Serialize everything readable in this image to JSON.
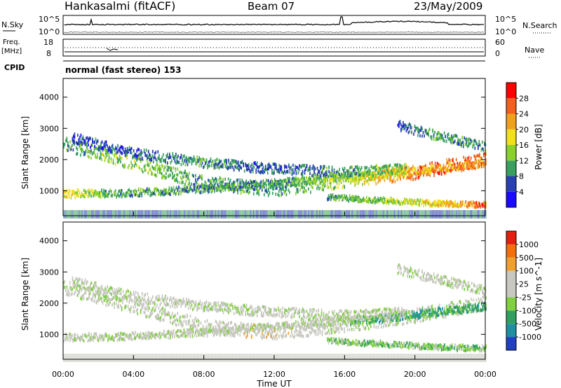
{
  "header": {
    "title": "Hankasalmi (fitACF)",
    "beam": "Beam 07",
    "date": "23/May/2009"
  },
  "strips": {
    "nsky_label": "N.Sky",
    "nsky_ticks": [
      "10^5",
      "10^0"
    ],
    "nsearch_label": "N.Search",
    "nsearch_ticks": [
      "10^5",
      "10^0"
    ],
    "freq_label": "Freq.",
    "freq_unit": "[MHz]",
    "freq_ticks": [
      "18",
      "8"
    ],
    "nave_label": "Nave",
    "nave_ticks": [
      "60",
      "0"
    ],
    "cpid_label": "CPID",
    "cpid_text": "normal (fast stereo) 153"
  },
  "chart_data": [
    {
      "type": "heatmap",
      "name": "power",
      "ylabel": "Slant Range [km]",
      "yticks": [
        1000,
        2000,
        3000,
        4000
      ],
      "ylim": [
        200,
        4600
      ],
      "xlim": [
        0,
        24
      ],
      "colorbar_label": "Power [dB]",
      "colorbar_ticks": [
        "4",
        "8",
        "12",
        "16",
        "20",
        "24",
        "28"
      ],
      "colors": [
        "#1a0aff",
        "#2a3fb0",
        "#3aa060",
        "#8ad030",
        "#f0e020",
        "#f0a020",
        "#f06020",
        "#ff0000"
      ],
      "bands": [
        {
          "t": [
            0,
            4,
            8,
            12,
            16,
            20,
            24
          ],
          "r": [
            2500,
            1900,
            1250,
            1050,
            1300,
            1600,
            2000
          ],
          "w": 220,
          "level": [
            2,
            3,
            2,
            2,
            3,
            6,
            6
          ]
        },
        {
          "t": [
            0,
            3,
            6,
            9,
            12,
            15,
            18,
            21,
            24
          ],
          "r": [
            900,
            920,
            1000,
            1100,
            1250,
            1400,
            1500,
            1700,
            1900
          ],
          "w": 120,
          "level": [
            4,
            2,
            2,
            2,
            2,
            3,
            4,
            5,
            5
          ]
        },
        {
          "t": [
            0.5,
            4,
            8,
            12,
            16,
            19.5
          ],
          "r": [
            2700,
            2200,
            1900,
            1700,
            1600,
            1700
          ],
          "w": 160,
          "level": [
            1,
            1,
            2,
            1,
            2,
            3
          ]
        },
        {
          "t": [
            19,
            21,
            24
          ],
          "r": [
            3100,
            2800,
            2400
          ],
          "w": 150,
          "level": [
            1,
            2,
            2
          ]
        },
        {
          "t": [
            15,
            18,
            21,
            24
          ],
          "r": [
            800,
            700,
            600,
            550
          ],
          "w": 90,
          "level": [
            2,
            3,
            4,
            6
          ]
        }
      ]
    },
    {
      "type": "heatmap",
      "name": "velocity",
      "ylabel": "Slant Range [km]",
      "yticks": [
        1000,
        2000,
        3000,
        4000
      ],
      "ylim": [
        200,
        4600
      ],
      "xlim": [
        0,
        24
      ],
      "xlabel": "Time UT",
      "xticks": [
        "00:00",
        "04:00",
        "08:00",
        "12:00",
        "16:00",
        "20:00",
        "00:00"
      ],
      "colorbar_label": "Velocity [m s^-1]",
      "colorbar_ticks": [
        "1000",
        "500",
        "100",
        "25",
        "-25",
        "-100",
        "-500",
        "-1000"
      ],
      "colors": [
        "#2040c0",
        "#2090a0",
        "#30a060",
        "#80d040",
        "#c8c8c0",
        "#c8c8c0",
        "#f0a030",
        "#f07010",
        "#e02010"
      ],
      "bands": [
        {
          "t": [
            0,
            4,
            8,
            12,
            16,
            20,
            24
          ],
          "r": [
            2500,
            1900,
            1250,
            1050,
            1300,
            1600,
            2000
          ],
          "w": 220,
          "level": [
            4,
            4,
            4,
            5,
            4,
            4,
            4
          ]
        },
        {
          "t": [
            0,
            3,
            6,
            9,
            12,
            15,
            18,
            21,
            24
          ],
          "r": [
            900,
            920,
            1000,
            1100,
            1250,
            1400,
            1500,
            1700,
            1900
          ],
          "w": 120,
          "level": [
            4,
            4,
            4,
            4,
            4,
            4,
            2,
            2,
            2
          ]
        },
        {
          "t": [
            0.5,
            4,
            8,
            12,
            16,
            19.5
          ],
          "r": [
            2700,
            2200,
            1900,
            1700,
            1600,
            1700
          ],
          "w": 160,
          "level": [
            4,
            4,
            4,
            4,
            4,
            4
          ]
        },
        {
          "t": [
            19,
            21,
            24
          ],
          "r": [
            3100,
            2800,
            2400
          ],
          "w": 150,
          "level": [
            4,
            4,
            4
          ]
        },
        {
          "t": [
            15,
            18,
            21,
            24
          ],
          "r": [
            800,
            700,
            600,
            550
          ],
          "w": 90,
          "level": [
            3,
            3,
            3,
            3
          ]
        }
      ]
    }
  ]
}
